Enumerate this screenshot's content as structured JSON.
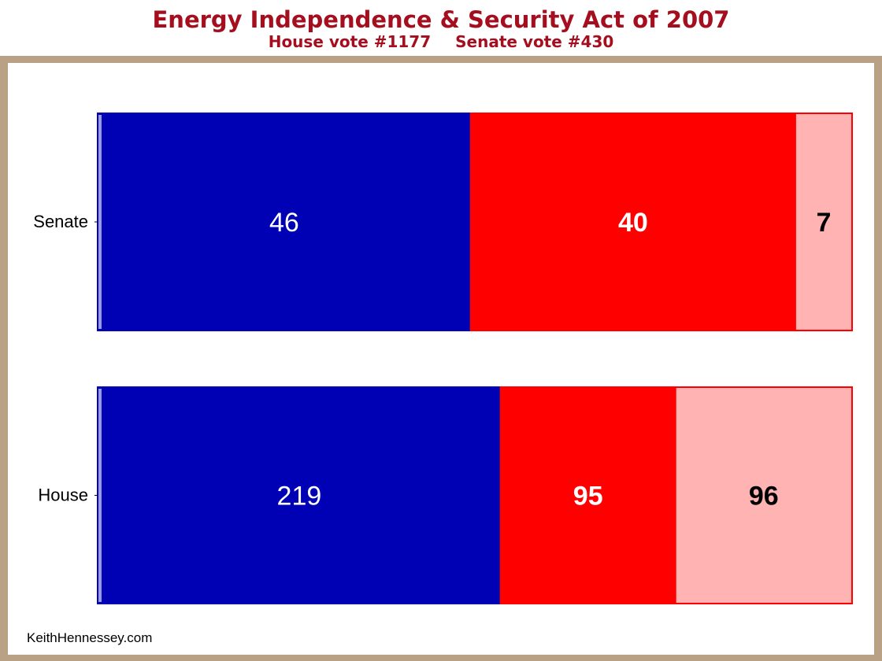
{
  "header": {
    "title": "Energy Independence & Security Act of 2007",
    "subtitle_house": "House vote #1177",
    "subtitle_senate": "Senate vote #430"
  },
  "credit": "KeithHennessey.com",
  "colors": {
    "democrat": "#0000b4",
    "republican_yes": "#ff0000",
    "republican_no": "#ffb3b3",
    "title": "#a50e1f",
    "frame": "#b8a185"
  },
  "chart_data": {
    "type": "bar",
    "orientation": "horizontal",
    "stacked": true,
    "categories": [
      "Senate",
      "House"
    ],
    "series": [
      {
        "values": [
          46,
          219
        ],
        "color": "#0000b4"
      },
      {
        "values": [
          40,
          95
        ],
        "color": "#ff0000"
      },
      {
        "values": [
          7,
          96
        ],
        "color": "#ffb3b3"
      }
    ],
    "percent_normalized": true,
    "grid": false,
    "legend": "none"
  }
}
